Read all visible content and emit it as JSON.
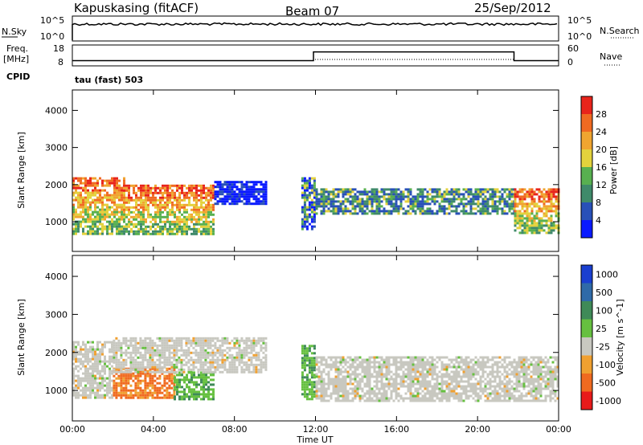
{
  "header": {
    "station": "Kapuskasing (fitACF)",
    "beam": "Beam 07",
    "date": "25/Sep/2012"
  },
  "noise_panel": {
    "left_label": "N.Sky",
    "left_ticks": [
      "10^5",
      "10^0"
    ],
    "right_label": "N.Search",
    "right_ticks": [
      "10^5",
      "10^0"
    ]
  },
  "freq_panel": {
    "left_label_1": "Freq.",
    "left_label_2": "[MHz]",
    "left_ticks": [
      "18",
      "8"
    ],
    "right_label": "Nave",
    "right_ticks": [
      "60",
      "0"
    ]
  },
  "cpid": {
    "label": "CPID",
    "value": "tau (fast) 503"
  },
  "colors": {
    "power_scale": [
      "#0a1aff",
      "#2850b8",
      "#3f8a6a",
      "#58b050",
      "#e3d23c",
      "#f0a530",
      "#f06a22",
      "#e8241b"
    ],
    "velocity_scale": [
      "#1a3fd0",
      "#2f6aa8",
      "#3f8a58",
      "#66c040",
      "#c8c8c0",
      "#f0a030",
      "#f06a20",
      "#e81a1a"
    ]
  },
  "chart_data": [
    {
      "type": "heatmap",
      "name": "power",
      "ylabel": "Slant Range [km]",
      "yticks": [
        1000,
        2000,
        3000,
        4000
      ],
      "ylim": [
        200,
        4550
      ],
      "xlim": [
        0,
        24
      ],
      "colorbar_label": "Power [dB]",
      "colorbar_ticks": [
        "4",
        "8",
        "12",
        "16",
        "20",
        "24",
        "28"
      ],
      "colorbar_range": [
        0,
        32
      ],
      "echo_regions": [
        {
          "x0": 0.0,
          "x1": 2.5,
          "y0": 700,
          "y1": 2200,
          "level": "mixed-high"
        },
        {
          "x0": 2.5,
          "x1": 7.0,
          "y0": 700,
          "y1": 2000,
          "level": "mixed-high"
        },
        {
          "x0": 7.0,
          "x1": 9.5,
          "y0": 1500,
          "y1": 2100,
          "level": "low"
        },
        {
          "x0": 11.3,
          "x1": 12.0,
          "y0": 800,
          "y1": 2200,
          "level": "mixed"
        },
        {
          "x0": 12.0,
          "x1": 21.8,
          "y0": 1200,
          "y1": 1900,
          "level": "mixed-low"
        },
        {
          "x0": 21.8,
          "x1": 24.0,
          "y0": 700,
          "y1": 1900,
          "level": "mixed-high"
        }
      ]
    },
    {
      "type": "heatmap",
      "name": "velocity",
      "xlabel": "Time UT",
      "ylabel": "Slant Range [km]",
      "yticks": [
        1000,
        2000,
        3000,
        4000
      ],
      "ylim": [
        200,
        4550
      ],
      "xlim": [
        0,
        24
      ],
      "xticks": [
        "00:00",
        "04:00",
        "08:00",
        "12:00",
        "16:00",
        "20:00",
        "00:00"
      ],
      "colorbar_label": "Velocity [m s^-1]",
      "colorbar_ticks": [
        "1000",
        "500",
        "100",
        "25",
        "-25",
        "-100",
        "-500",
        "-1000"
      ],
      "echo_regions": [
        {
          "x0": 0.0,
          "x1": 2.0,
          "y0": 800,
          "y1": 2300,
          "level": "ground"
        },
        {
          "x0": 2.0,
          "x1": 5.0,
          "y0": 800,
          "y1": 1600,
          "level": "negative"
        },
        {
          "x0": 5.0,
          "x1": 7.0,
          "y0": 800,
          "y1": 1500,
          "level": "positive"
        },
        {
          "x0": 2.0,
          "x1": 9.5,
          "y0": 1500,
          "y1": 2400,
          "level": "ground"
        },
        {
          "x0": 11.3,
          "x1": 12.0,
          "y0": 800,
          "y1": 2200,
          "level": "positive"
        },
        {
          "x0": 12.0,
          "x1": 24.0,
          "y0": 700,
          "y1": 1900,
          "level": "ground"
        }
      ]
    },
    {
      "type": "line",
      "name": "frequency",
      "x": [
        0,
        11.9,
        11.9,
        21.8,
        21.8,
        24
      ],
      "y": [
        10.5,
        10.5,
        14.7,
        14.7,
        10.5,
        10.5
      ],
      "ylim": [
        8,
        18
      ]
    }
  ]
}
